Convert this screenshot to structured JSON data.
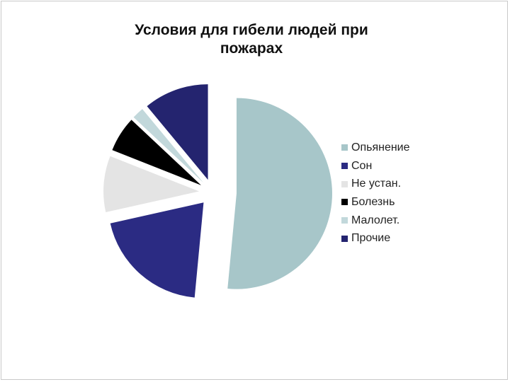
{
  "chart_data": {
    "type": "pie",
    "title": "Условия для гибели людей при пожарах",
    "title_lines": [
      "Условия для гибели людей при",
      "пожарах"
    ],
    "legend_position": "right",
    "exploded": true,
    "slices": [
      {
        "label": "Опьянение",
        "value": 51.5,
        "color": "#a7c6c9"
      },
      {
        "label": "Сон",
        "value": 20,
        "color": "#2b2b83"
      },
      {
        "label": "Не устан.",
        "value": 9.5,
        "color": "#e4e4e4"
      },
      {
        "label": "Болезнь",
        "value": 6,
        "color": "#000000"
      },
      {
        "label": "Малолет.",
        "value": 2,
        "color": "#c2d8db"
      },
      {
        "label": "Прочие",
        "value": 11,
        "color": "#24246f"
      }
    ]
  }
}
